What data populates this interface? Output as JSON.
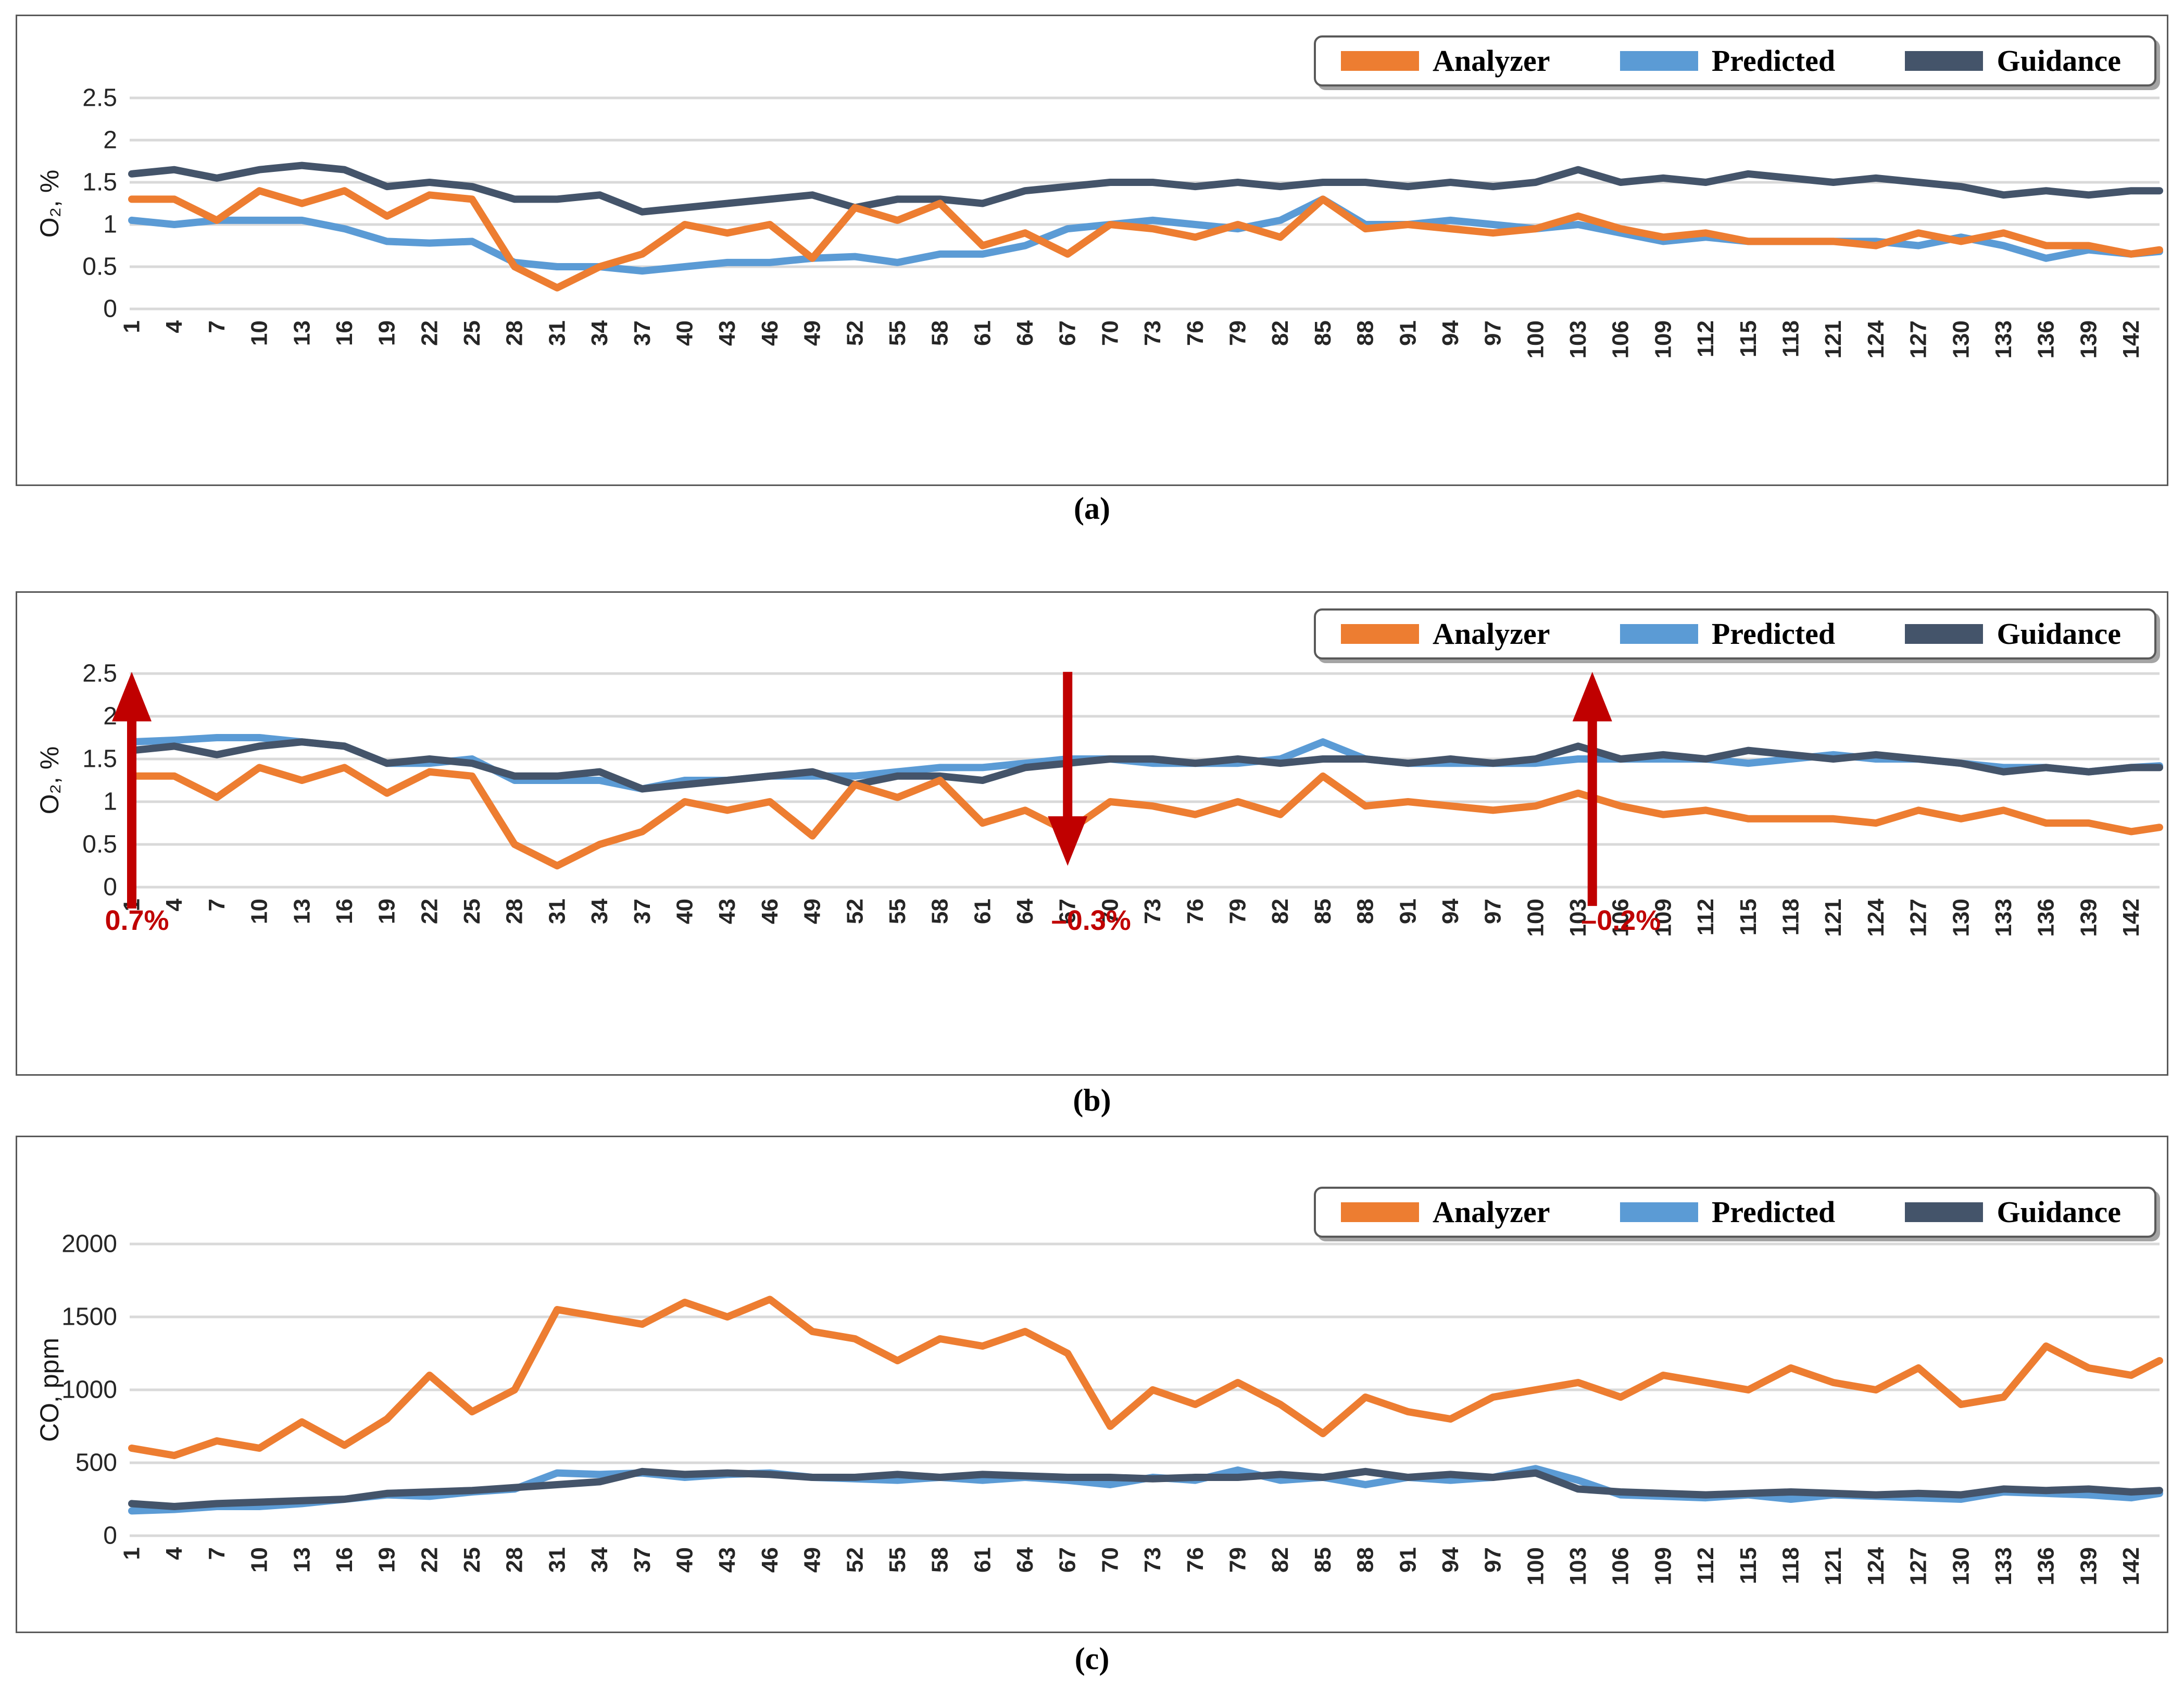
{
  "captions": {
    "a": "(a)",
    "b": "(b)",
    "c": "(c)"
  },
  "colors": {
    "analyzer": "#ED7D31",
    "predicted": "#5B9BD5",
    "guidance": "#44546A",
    "annotation": "#C00000",
    "gridline": "#D9D9D9",
    "panel_border": "#595959",
    "tick_text": "#262626"
  },
  "legend": {
    "items": [
      {
        "label": "Analyzer",
        "color": "#ED7D31"
      },
      {
        "label": "Predicted",
        "color": "#5B9BD5"
      },
      {
        "label": "Guidance",
        "color": "#44546A"
      }
    ]
  },
  "chart_data": [
    {
      "id": "a",
      "type": "line",
      "ylabel": "O₂, %",
      "ylim": [
        0,
        2.5
      ],
      "y_ticks": [
        0,
        0.5,
        1,
        1.5,
        2,
        2.5
      ],
      "y_tick_labels": [
        "0",
        "0.5",
        "1",
        "1.5",
        "2",
        "2.5"
      ],
      "grid": true,
      "legend_position": "top-right",
      "x_range": [
        1,
        144
      ],
      "x": [
        1,
        4,
        7,
        10,
        13,
        16,
        19,
        22,
        25,
        28,
        31,
        34,
        37,
        40,
        43,
        46,
        49,
        52,
        55,
        58,
        61,
        64,
        67,
        70,
        73,
        76,
        79,
        82,
        85,
        88,
        91,
        94,
        97,
        100,
        103,
        106,
        109,
        112,
        115,
        118,
        121,
        124,
        127,
        130,
        133,
        136,
        139,
        142,
        144
      ],
      "series": [
        {
          "name": "Analyzer",
          "color_key": "analyzer",
          "values": [
            1.3,
            1.3,
            1.05,
            1.4,
            1.25,
            1.4,
            1.1,
            1.35,
            1.3,
            0.5,
            0.25,
            0.5,
            0.65,
            1.0,
            0.9,
            1.0,
            0.6,
            1.2,
            1.05,
            1.25,
            0.75,
            0.9,
            0.65,
            1.0,
            0.95,
            0.85,
            1.0,
            0.85,
            1.3,
            0.95,
            1.0,
            0.95,
            0.9,
            0.95,
            1.1,
            0.95,
            0.85,
            0.9,
            0.8,
            0.8,
            0.8,
            0.75,
            0.9,
            0.8,
            0.9,
            0.75,
            0.75,
            0.65,
            0.7
          ]
        },
        {
          "name": "Predicted",
          "color_key": "predicted",
          "values": [
            1.05,
            1.0,
            1.05,
            1.05,
            1.05,
            0.95,
            0.8,
            0.78,
            0.8,
            0.55,
            0.5,
            0.5,
            0.45,
            0.5,
            0.55,
            0.55,
            0.6,
            0.62,
            0.55,
            0.65,
            0.65,
            0.75,
            0.95,
            1.0,
            1.05,
            1.0,
            0.95,
            1.05,
            1.3,
            1.0,
            1.0,
            1.05,
            1.0,
            0.95,
            1.0,
            0.9,
            0.8,
            0.85,
            0.8,
            0.8,
            0.8,
            0.8,
            0.75,
            0.85,
            0.75,
            0.6,
            0.7,
            0.65,
            0.68
          ]
        },
        {
          "name": "Guidance",
          "color_key": "guidance",
          "values": [
            1.6,
            1.65,
            1.55,
            1.65,
            1.7,
            1.65,
            1.45,
            1.5,
            1.45,
            1.3,
            1.3,
            1.35,
            1.15,
            1.2,
            1.25,
            1.3,
            1.35,
            1.2,
            1.3,
            1.3,
            1.25,
            1.4,
            1.45,
            1.5,
            1.5,
            1.45,
            1.5,
            1.45,
            1.5,
            1.5,
            1.45,
            1.5,
            1.45,
            1.5,
            1.65,
            1.5,
            1.55,
            1.5,
            1.6,
            1.55,
            1.5,
            1.55,
            1.5,
            1.45,
            1.35,
            1.4,
            1.35,
            1.4,
            1.4
          ]
        }
      ],
      "annotations": []
    },
    {
      "id": "b",
      "type": "line",
      "ylabel": "O₂, %",
      "ylim": [
        0,
        2.5
      ],
      "y_ticks": [
        0,
        0.5,
        1,
        1.5,
        2,
        2.5
      ],
      "y_tick_labels": [
        "0",
        "0.5",
        "1",
        "1.5",
        "2",
        "2.5"
      ],
      "grid": true,
      "legend_position": "top-right",
      "x_range": [
        1,
        144
      ],
      "x": [
        1,
        4,
        7,
        10,
        13,
        16,
        19,
        22,
        25,
        28,
        31,
        34,
        37,
        40,
        43,
        46,
        49,
        52,
        55,
        58,
        61,
        64,
        67,
        70,
        73,
        76,
        79,
        82,
        85,
        88,
        91,
        94,
        97,
        100,
        103,
        106,
        109,
        112,
        115,
        118,
        121,
        124,
        127,
        130,
        133,
        136,
        139,
        142,
        144
      ],
      "series": [
        {
          "name": "Analyzer",
          "color_key": "analyzer",
          "values": [
            1.3,
            1.3,
            1.05,
            1.4,
            1.25,
            1.4,
            1.1,
            1.35,
            1.3,
            0.5,
            0.25,
            0.5,
            0.65,
            1.0,
            0.9,
            1.0,
            0.6,
            1.2,
            1.05,
            1.25,
            0.75,
            0.9,
            0.65,
            1.0,
            0.95,
            0.85,
            1.0,
            0.85,
            1.3,
            0.95,
            1.0,
            0.95,
            0.9,
            0.95,
            1.1,
            0.95,
            0.85,
            0.9,
            0.8,
            0.8,
            0.8,
            0.75,
            0.9,
            0.8,
            0.9,
            0.75,
            0.75,
            0.65,
            0.7
          ]
        },
        {
          "name": "Predicted",
          "color_key": "predicted",
          "values": [
            1.7,
            1.72,
            1.75,
            1.75,
            1.7,
            1.65,
            1.45,
            1.45,
            1.5,
            1.25,
            1.25,
            1.25,
            1.15,
            1.25,
            1.25,
            1.3,
            1.3,
            1.3,
            1.35,
            1.4,
            1.4,
            1.45,
            1.5,
            1.5,
            1.45,
            1.45,
            1.45,
            1.5,
            1.7,
            1.5,
            1.45,
            1.45,
            1.45,
            1.45,
            1.5,
            1.5,
            1.5,
            1.5,
            1.45,
            1.5,
            1.55,
            1.5,
            1.5,
            1.45,
            1.4,
            1.4,
            1.35,
            1.4,
            1.42
          ]
        },
        {
          "name": "Guidance",
          "color_key": "guidance",
          "values": [
            1.6,
            1.65,
            1.55,
            1.65,
            1.7,
            1.65,
            1.45,
            1.5,
            1.45,
            1.3,
            1.3,
            1.35,
            1.15,
            1.2,
            1.25,
            1.3,
            1.35,
            1.2,
            1.3,
            1.3,
            1.25,
            1.4,
            1.45,
            1.5,
            1.5,
            1.45,
            1.5,
            1.45,
            1.5,
            1.5,
            1.45,
            1.5,
            1.45,
            1.5,
            1.65,
            1.5,
            1.55,
            1.5,
            1.6,
            1.55,
            1.5,
            1.55,
            1.5,
            1.45,
            1.35,
            1.4,
            1.35,
            1.4,
            1.4
          ]
        }
      ],
      "annotations": [
        {
          "label": "0.7%",
          "x": 1,
          "direction": "up",
          "value_span": [
            -0.25,
            2.52
          ],
          "label_value": -0.5,
          "label_dx": 10
        },
        {
          "label": "–0.3%",
          "x": 67,
          "direction": "down",
          "value_span": [
            2.52,
            0.25
          ],
          "label_value": -0.5,
          "label_dx": 45
        },
        {
          "label": "–0.2%",
          "x": 104,
          "direction": "up",
          "value_span": [
            -0.22,
            2.52
          ],
          "label_value": -0.5,
          "label_dx": 55
        }
      ]
    },
    {
      "id": "c",
      "type": "line",
      "ylabel": "CO, ppm",
      "ylim": [
        0,
        2000
      ],
      "y_ticks": [
        0,
        500,
        1000,
        1500,
        2000
      ],
      "y_tick_labels": [
        "0",
        "500",
        "1000",
        "1500",
        "2000"
      ],
      "grid": true,
      "legend_position": "top-right",
      "x_range": [
        1,
        144
      ],
      "x": [
        1,
        4,
        7,
        10,
        13,
        16,
        19,
        22,
        25,
        28,
        31,
        34,
        37,
        40,
        43,
        46,
        49,
        52,
        55,
        58,
        61,
        64,
        67,
        70,
        73,
        76,
        79,
        82,
        85,
        88,
        91,
        94,
        97,
        100,
        103,
        106,
        109,
        112,
        115,
        118,
        121,
        124,
        127,
        130,
        133,
        136,
        139,
        142,
        144
      ],
      "series": [
        {
          "name": "Analyzer",
          "color_key": "analyzer",
          "values": [
            600,
            550,
            650,
            600,
            780,
            620,
            800,
            1100,
            850,
            1000,
            1550,
            1500,
            1450,
            1600,
            1500,
            1620,
            1400,
            1350,
            1200,
            1350,
            1300,
            1400,
            1250,
            750,
            1000,
            900,
            1050,
            900,
            700,
            950,
            850,
            800,
            950,
            1000,
            1050,
            950,
            1100,
            1050,
            1000,
            1150,
            1050,
            1000,
            1150,
            900,
            950,
            1300,
            1150,
            1100,
            1200
          ]
        },
        {
          "name": "Predicted",
          "color_key": "predicted",
          "values": [
            170,
            180,
            200,
            200,
            220,
            250,
            280,
            270,
            300,
            320,
            430,
            420,
            430,
            400,
            420,
            430,
            400,
            390,
            380,
            400,
            380,
            400,
            380,
            350,
            400,
            380,
            450,
            380,
            400,
            350,
            400,
            380,
            400,
            460,
            380,
            280,
            270,
            260,
            280,
            250,
            280,
            270,
            260,
            250,
            300,
            290,
            280,
            260,
            290
          ]
        },
        {
          "name": "Guidance",
          "color_key": "guidance",
          "values": [
            220,
            200,
            220,
            230,
            240,
            250,
            290,
            300,
            310,
            330,
            350,
            370,
            440,
            420,
            430,
            420,
            400,
            400,
            420,
            400,
            420,
            410,
            400,
            400,
            390,
            400,
            400,
            420,
            400,
            440,
            400,
            420,
            400,
            430,
            320,
            300,
            290,
            280,
            290,
            300,
            290,
            280,
            290,
            280,
            320,
            310,
            320,
            300,
            310
          ]
        }
      ],
      "annotations": []
    }
  ]
}
